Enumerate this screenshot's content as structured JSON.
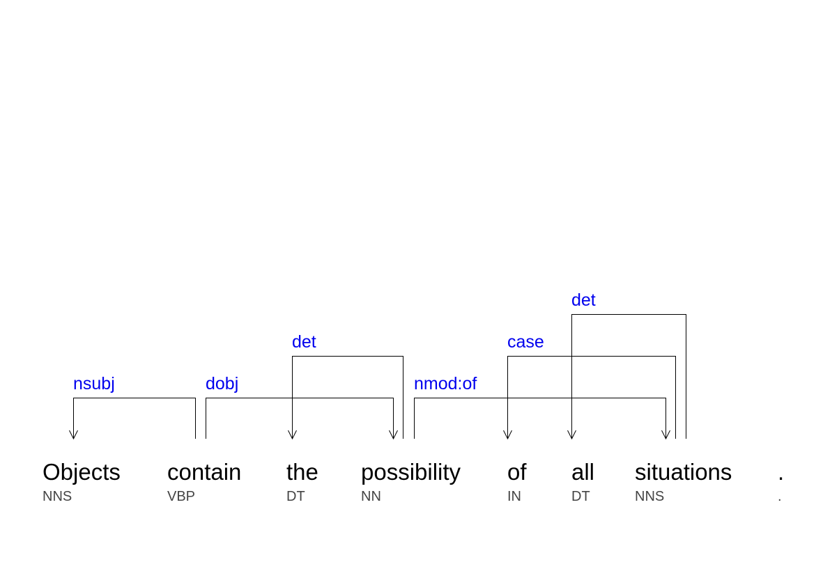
{
  "diagram": {
    "tokens": [
      {
        "word": "Objects",
        "tag": "NNS"
      },
      {
        "word": "contain",
        "tag": "VBP"
      },
      {
        "word": "the",
        "tag": "DT"
      },
      {
        "word": "possibility",
        "tag": "NN"
      },
      {
        "word": "of",
        "tag": "IN"
      },
      {
        "word": "all",
        "tag": "DT"
      },
      {
        "word": "situations",
        "tag": "NNS"
      },
      {
        "word": ".",
        "tag": "."
      }
    ],
    "relations": [
      {
        "label": "nsubj",
        "head": 1,
        "dependent": 0
      },
      {
        "label": "dobj",
        "head": 1,
        "dependent": 3
      },
      {
        "label": "det",
        "head": 3,
        "dependent": 2
      },
      {
        "label": "nmod:of",
        "head": 3,
        "dependent": 6
      },
      {
        "label": "case",
        "head": 6,
        "dependent": 4
      },
      {
        "label": "det",
        "head": 6,
        "dependent": 5
      }
    ],
    "colors": {
      "word": "#000000",
      "tag": "#444444",
      "relation": "#0000ee",
      "line": "#000000"
    }
  }
}
